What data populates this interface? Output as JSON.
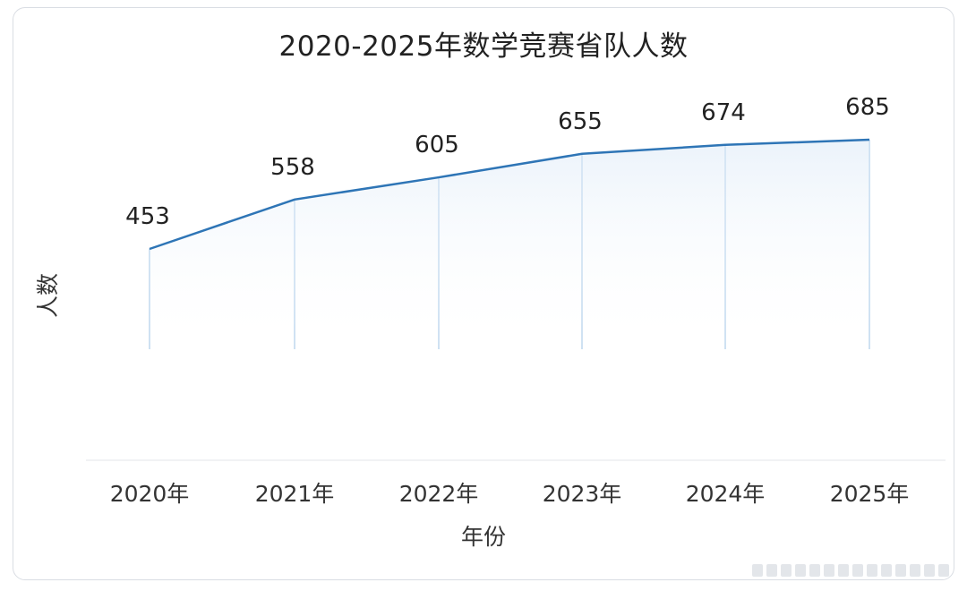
{
  "chart_data": {
    "type": "line",
    "title": "2020-2025年数学竞赛省队人数",
    "xlabel": "年份",
    "ylabel": "人数",
    "categories": [
      "2020年",
      "2021年",
      "2022年",
      "2023年",
      "2024年",
      "2025年"
    ],
    "values": [
      453,
      558,
      605,
      655,
      674,
      685
    ],
    "data_labels": [
      "453",
      "558",
      "605",
      "655",
      "674",
      "685"
    ],
    "grid": false,
    "legend": "none",
    "colors": {
      "line": "#2e75b6",
      "drop_line": "#9ec3e6",
      "area_top": "#dbe9f7"
    }
  }
}
